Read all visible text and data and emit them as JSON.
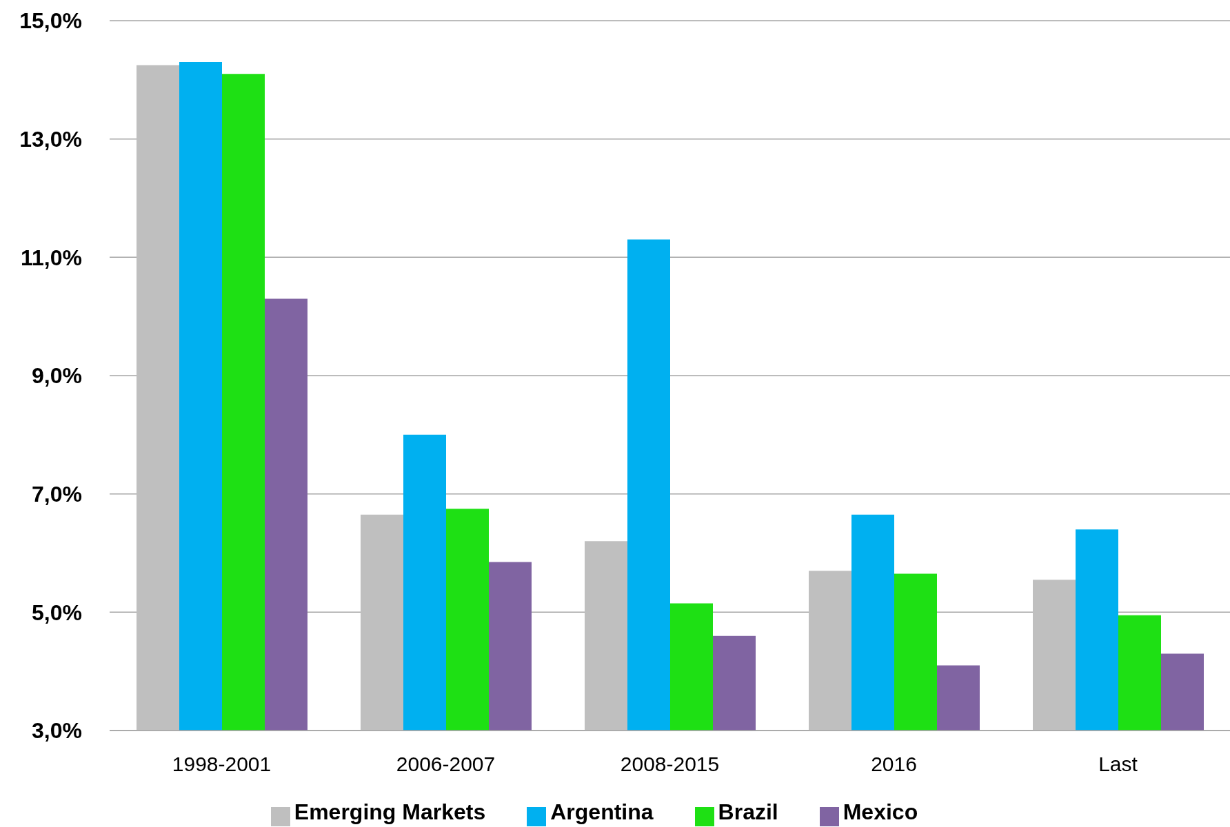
{
  "chart_data": {
    "type": "bar",
    "categories": [
      "1998-2001",
      "2006-2007",
      "2008-2015",
      "2016",
      "Last"
    ],
    "series": [
      {
        "name": "Emerging Markets",
        "color": "#bfbfbf",
        "values": [
          14.25,
          6.65,
          6.2,
          5.7,
          5.55
        ]
      },
      {
        "name": "Argentina",
        "color": "#00b0f0",
        "values": [
          14.3,
          8.0,
          11.3,
          6.65,
          6.4
        ]
      },
      {
        "name": "Brazil",
        "color": "#1ee014",
        "values": [
          14.1,
          6.75,
          5.15,
          5.65,
          4.95
        ]
      },
      {
        "name": "Mexico",
        "color": "#8064a2",
        "values": [
          10.3,
          5.85,
          4.6,
          4.1,
          4.3
        ]
      }
    ],
    "ylim": [
      3,
      15
    ],
    "yticks": [
      {
        "value": 3,
        "label": "3,0%"
      },
      {
        "value": 5,
        "label": "5,0%"
      },
      {
        "value": 7,
        "label": "7,0%"
      },
      {
        "value": 9,
        "label": "9,0%"
      },
      {
        "value": 11,
        "label": "11,0%"
      },
      {
        "value": 13,
        "label": "13,0%"
      },
      {
        "value": 15,
        "label": "15,0%"
      }
    ],
    "grid": "y",
    "legend": "bottom"
  }
}
